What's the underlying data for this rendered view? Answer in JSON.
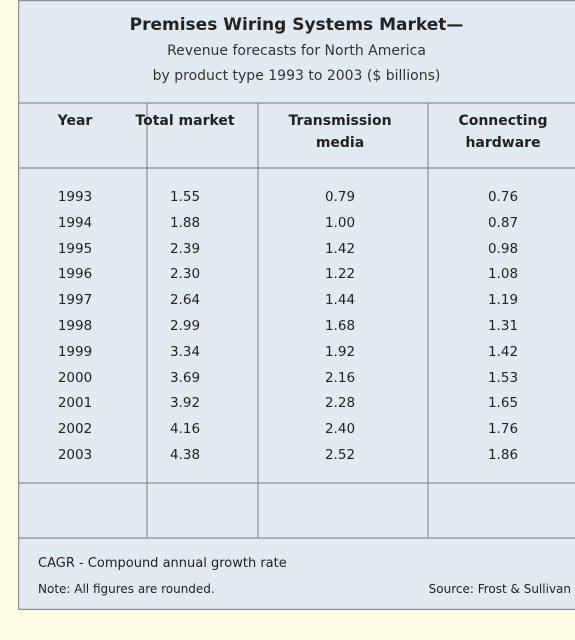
{
  "table": {
    "title": "Premises Wiring Systems Market—",
    "subtitle": [
      "Revenue forecasts for North America",
      "by product type 1993 to 2003 ($ billions)"
    ],
    "headers": [
      "Year",
      "Total market",
      "Transmission media",
      "Connecting hardware"
    ],
    "rows": [
      [
        "1993",
        "1.55",
        "0.79",
        "0.76"
      ],
      [
        "1994",
        "1.88",
        "1.00",
        "0.87"
      ],
      [
        "1995",
        "2.39",
        "1.42",
        "0.98"
      ],
      [
        "1996",
        "2.30",
        "1.22",
        "1.08"
      ],
      [
        "1997",
        "2.64",
        "1.44",
        "1.19"
      ],
      [
        "1998",
        "2.99",
        "1.68",
        "1.31"
      ],
      [
        "1999",
        "3.34",
        "1.92",
        "1.42"
      ],
      [
        "2000",
        "3.69",
        "2.16",
        "1.53"
      ],
      [
        "2001",
        "3.92",
        "2.28",
        "1.65"
      ],
      [
        "2002",
        "4.16",
        "2.40",
        "1.76"
      ],
      [
        "2003",
        "4.38",
        "2.52",
        "1.86"
      ]
    ],
    "footer": {
      "definition": "CAGR - Compound annual growth rate",
      "note": "Note: All figures are rounded.",
      "source": "Source: Frost & Sullivan"
    }
  }
}
